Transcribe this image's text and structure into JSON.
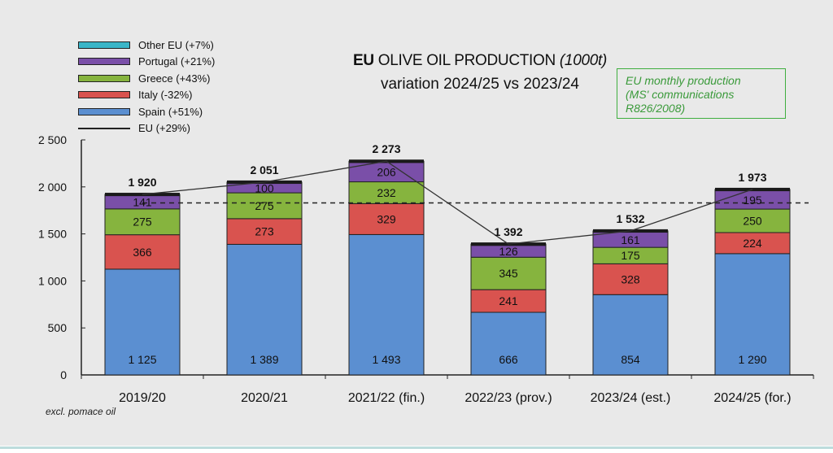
{
  "title": {
    "bold": "EU",
    "main": "OLIVE OIL PRODUCTION",
    "unit": "(1000t)",
    "subtitle": "variation 2024/25 vs 2023/24"
  },
  "note_box": [
    "EU monthly production",
    "(MS' communications",
    "R826/2008)"
  ],
  "footnote": "excl. pomace oil",
  "legend": [
    {
      "label": "Other EU (+7%)",
      "color": "#3bb6c8",
      "kind": "swatch"
    },
    {
      "label": "Portugal (+21%)",
      "color": "#7a4fa8",
      "kind": "swatch"
    },
    {
      "label": "Greece (+43%)",
      "color": "#86b43e",
      "kind": "swatch"
    },
    {
      "label": "Italy (-32%)",
      "color": "#d9534f",
      "kind": "swatch"
    },
    {
      "label": "Spain (+51%)",
      "color": "#5b8fd1",
      "kind": "swatch"
    },
    {
      "label": "EU (+29%)",
      "color": "#222222",
      "kind": "line"
    }
  ],
  "chart_data": {
    "type": "bar",
    "stacked": true,
    "categories": [
      "2019/20",
      "2020/21",
      "2021/22 (fin.)",
      "2022/23 (prov.)",
      "2023/24 (est.)",
      "2024/25 (for.)"
    ],
    "series": [
      {
        "name": "Spain (+51%)",
        "color": "#5b8fd1",
        "values": [
          1125,
          1389,
          1493,
          666,
          854,
          1290
        ],
        "labels": [
          "1 125",
          "1 389",
          "1 493",
          "666",
          "854",
          "1 290"
        ]
      },
      {
        "name": "Italy (-32%)",
        "color": "#d9534f",
        "values": [
          366,
          273,
          329,
          241,
          328,
          224
        ],
        "labels": [
          "366",
          "273",
          "329",
          "241",
          "328",
          "224"
        ]
      },
      {
        "name": "Greece (+43%)",
        "color": "#86b43e",
        "values": [
          275,
          275,
          232,
          345,
          175,
          250
        ],
        "labels": [
          "275",
          "275",
          "232",
          "345",
          "175",
          "250"
        ]
      },
      {
        "name": "Portugal (+21%)",
        "color": "#7a4fa8",
        "values": [
          141,
          100,
          206,
          126,
          161,
          195
        ],
        "labels": [
          "141",
          "100",
          "206",
          "126",
          "161",
          "195"
        ]
      },
      {
        "name": "Other EU (+7%)",
        "color": "#3bb6c8",
        "values": [
          13,
          14,
          13,
          14,
          14,
          14
        ],
        "labels": [
          "",
          "",
          "",
          "",
          "",
          ""
        ]
      }
    ],
    "totals": [
      1920,
      2051,
      2273,
      1392,
      1532,
      1973
    ],
    "total_labels": [
      "1 920",
      "2 051",
      "2 273",
      "1 392",
      "1 532",
      "1 973"
    ],
    "line": {
      "name": "EU (+29%)",
      "values": [
        1920,
        2051,
        2273,
        1392,
        1532,
        1973
      ]
    },
    "average_line": 1830,
    "ylim": [
      0,
      2500
    ],
    "yticks": [
      0,
      500,
      1000,
      1500,
      2000,
      2500
    ],
    "ytick_labels": [
      "0",
      "500",
      "1 000",
      "1 500",
      "2 000",
      "2 500"
    ],
    "xlabel": "",
    "ylabel": ""
  }
}
